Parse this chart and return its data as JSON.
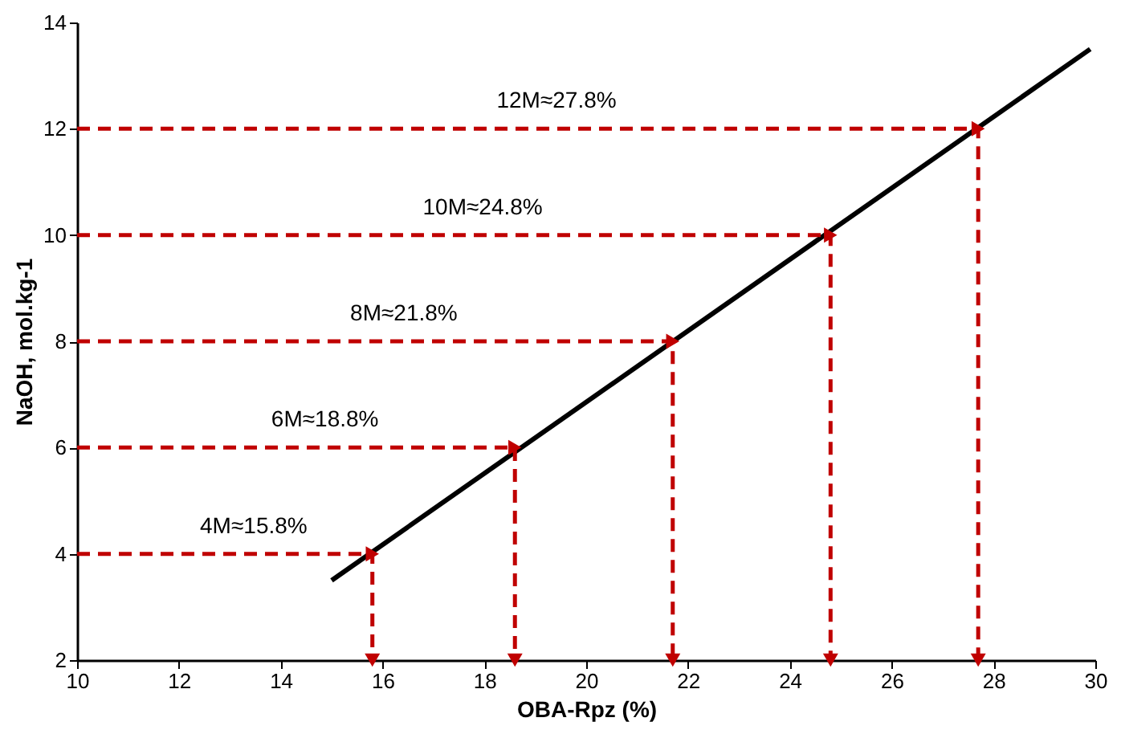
{
  "chart_data": {
    "type": "line",
    "xlabel": "OBA-Rpz (%)",
    "ylabel": "NaOH, mol.kg-1",
    "xlim": [
      10,
      30
    ],
    "xticks": [
      10,
      12,
      14,
      16,
      18,
      20,
      22,
      24,
      26,
      28,
      30
    ],
    "ylim": [
      2,
      14
    ],
    "yticks": [
      2,
      4,
      6,
      8,
      10,
      12,
      14
    ],
    "grid": false,
    "series": [
      {
        "color": "#000000",
        "line_style": "solid",
        "x": [
          15,
          29.9
        ],
        "values": [
          3.5,
          13.5
        ]
      },
      {
        "color": "#c00000",
        "line_style": "dashed",
        "x": [
          10,
          15.8,
          15.8
        ],
        "values": [
          4,
          4,
          2
        ]
      },
      {
        "color": "#c00000",
        "line_style": "dashed",
        "x": [
          10,
          18.6,
          18.6
        ],
        "values": [
          6,
          6,
          2
        ]
      },
      {
        "color": "#c00000",
        "line_style": "dashed",
        "x": [
          10,
          21.7,
          21.7
        ],
        "values": [
          8,
          8,
          2
        ]
      },
      {
        "color": "#c00000",
        "line_style": "dashed",
        "x": [
          10,
          24.8,
          24.8
        ],
        "values": [
          10,
          10,
          2
        ]
      },
      {
        "color": "#c00000",
        "line_style": "dashed",
        "x": [
          10,
          27.7,
          27.7
        ],
        "values": [
          12,
          12,
          2
        ]
      }
    ],
    "annotations": [
      "4M≈15.8%",
      "6M≈18.8%",
      "8M≈21.8%",
      "10M≈24.8%",
      "12M≈27.8%"
    ]
  }
}
